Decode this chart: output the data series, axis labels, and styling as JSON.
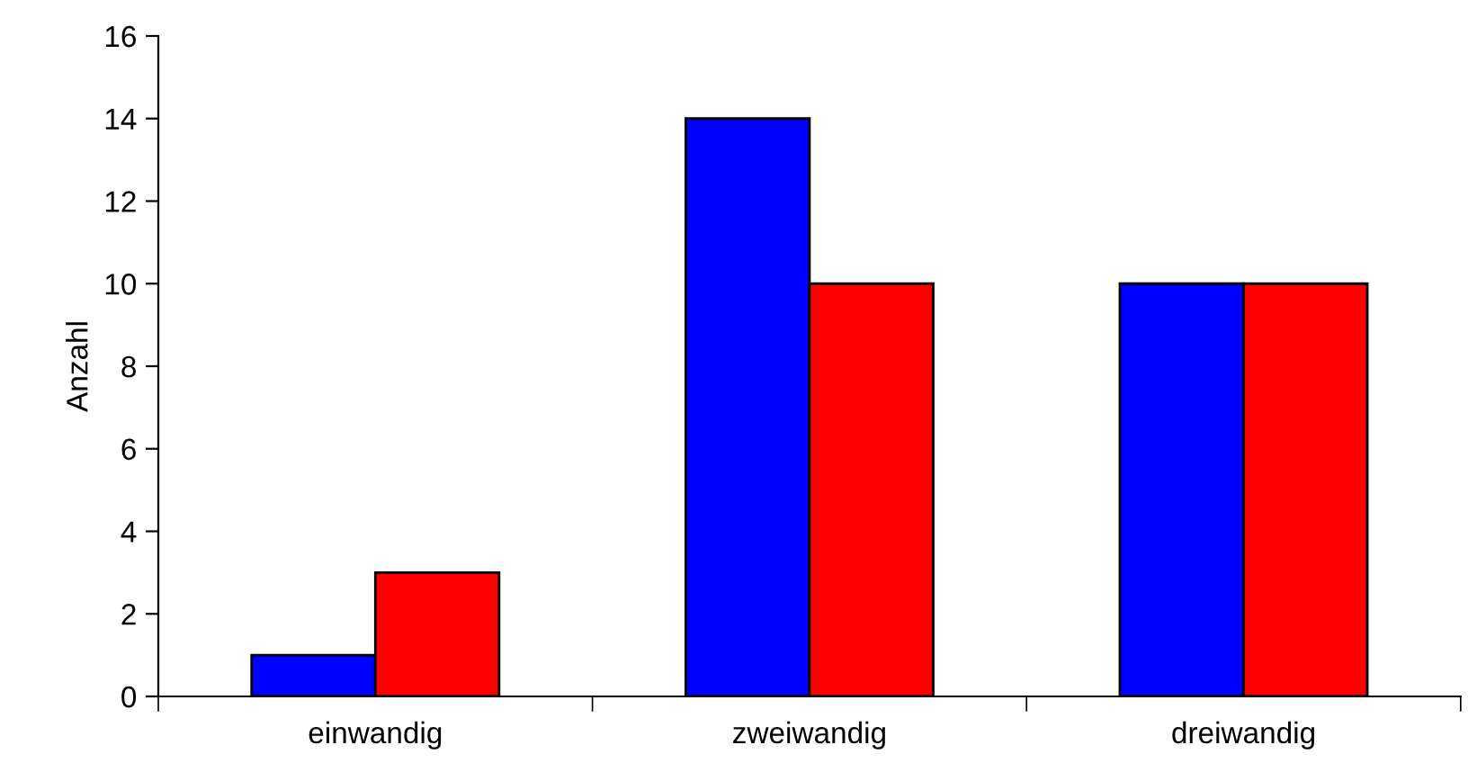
{
  "chart_data": {
    "type": "bar",
    "ylabel": "Anzahl",
    "categories": [
      "einwandig",
      "zweiwandig",
      "dreiwandig"
    ],
    "series": [
      {
        "color": "#0000ff",
        "values": [
          1,
          14,
          10
        ]
      },
      {
        "color": "#ff0000",
        "values": [
          3,
          10,
          10
        ]
      }
    ],
    "ylim": [
      0,
      16
    ],
    "yticks": [
      0,
      2,
      4,
      6,
      8,
      10,
      12,
      14,
      16
    ],
    "grid": false,
    "legend": false
  }
}
